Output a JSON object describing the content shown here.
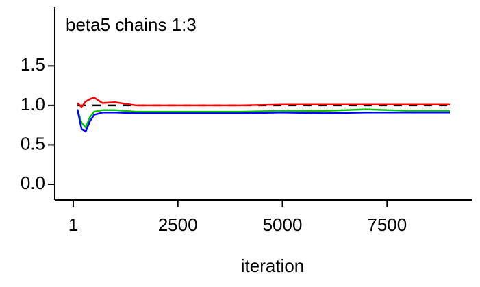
{
  "chart_data": {
    "type": "line",
    "title": "beta5 chains 1:3",
    "x_label": "iteration",
    "x": [
      101,
      200,
      300,
      400,
      500,
      700,
      1000,
      1500,
      2000,
      3000,
      4000,
      5000,
      6000,
      7000,
      8000,
      9000
    ],
    "series": [
      {
        "color": "#000000",
        "dashed": true,
        "values": [
          1.0,
          1.0,
          1.0,
          1.0,
          1.0,
          1.0,
          1.0,
          1.0,
          1.0,
          1.0,
          1.0,
          1.0,
          1.0,
          1.0,
          1.0,
          1.0
        ]
      },
      {
        "color": "#00c800",
        "values": [
          0.95,
          0.78,
          0.72,
          0.85,
          0.92,
          0.94,
          0.94,
          0.92,
          0.92,
          0.92,
          0.92,
          0.93,
          0.93,
          0.95,
          0.93,
          0.93
        ]
      },
      {
        "color": "#0000ff",
        "values": [
          0.95,
          0.7,
          0.67,
          0.8,
          0.88,
          0.91,
          0.91,
          0.9,
          0.9,
          0.9,
          0.9,
          0.91,
          0.9,
          0.91,
          0.91,
          0.91
        ]
      },
      {
        "color": "#ff0000",
        "values": [
          1.03,
          0.98,
          1.05,
          1.08,
          1.1,
          1.03,
          1.04,
          1.0,
          1.0,
          1.0,
          1.0,
          1.01,
          1.01,
          1.01,
          1.01,
          1.01
        ]
      }
    ],
    "xlim": [
      -440,
      9540
    ],
    "ylim": [
      -0.2,
      2.25
    ],
    "xticks": [
      1,
      2500,
      5000,
      7500
    ],
    "yticks": [
      {
        "value": 0,
        "label": "0.0"
      },
      0.5,
      {
        "value": 1,
        "label": "1.0"
      },
      1.5
    ]
  }
}
